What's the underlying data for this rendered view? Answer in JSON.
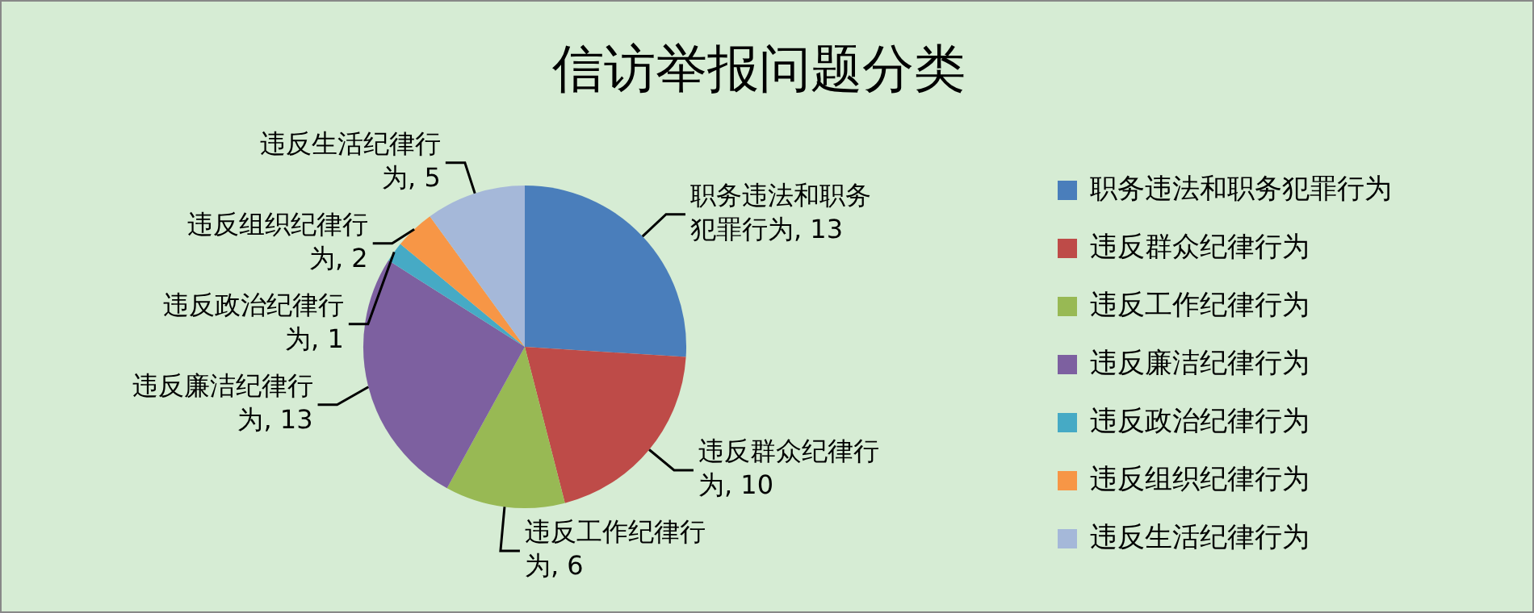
{
  "chart_data": {
    "type": "pie",
    "title": "信访举报问题分类",
    "categories": [
      "职务违法和职务犯罪行为",
      "违反群众纪律行为",
      "违反工作纪律行为",
      "违反廉洁纪律行为",
      "违反政治纪律行为",
      "违反组织纪律行为",
      "违反生活纪律行为"
    ],
    "values": [
      13,
      10,
      6,
      13,
      1,
      2,
      5
    ],
    "colors": [
      "#4a7ebb",
      "#be4b48",
      "#98b954",
      "#7d60a0",
      "#46aac5",
      "#f79646",
      "#a5b8d9"
    ],
    "value_labels": [
      "职务违法和职务犯罪行为, 13",
      "违反群众纪律行为, 10",
      "违反工作纪律行为, 6",
      "违反廉洁纪律行为, 13",
      "违反政治纪律行为, 1",
      "违反组织纪律行为, 2",
      "违反生活纪律行为, 5"
    ],
    "legend": "right"
  }
}
